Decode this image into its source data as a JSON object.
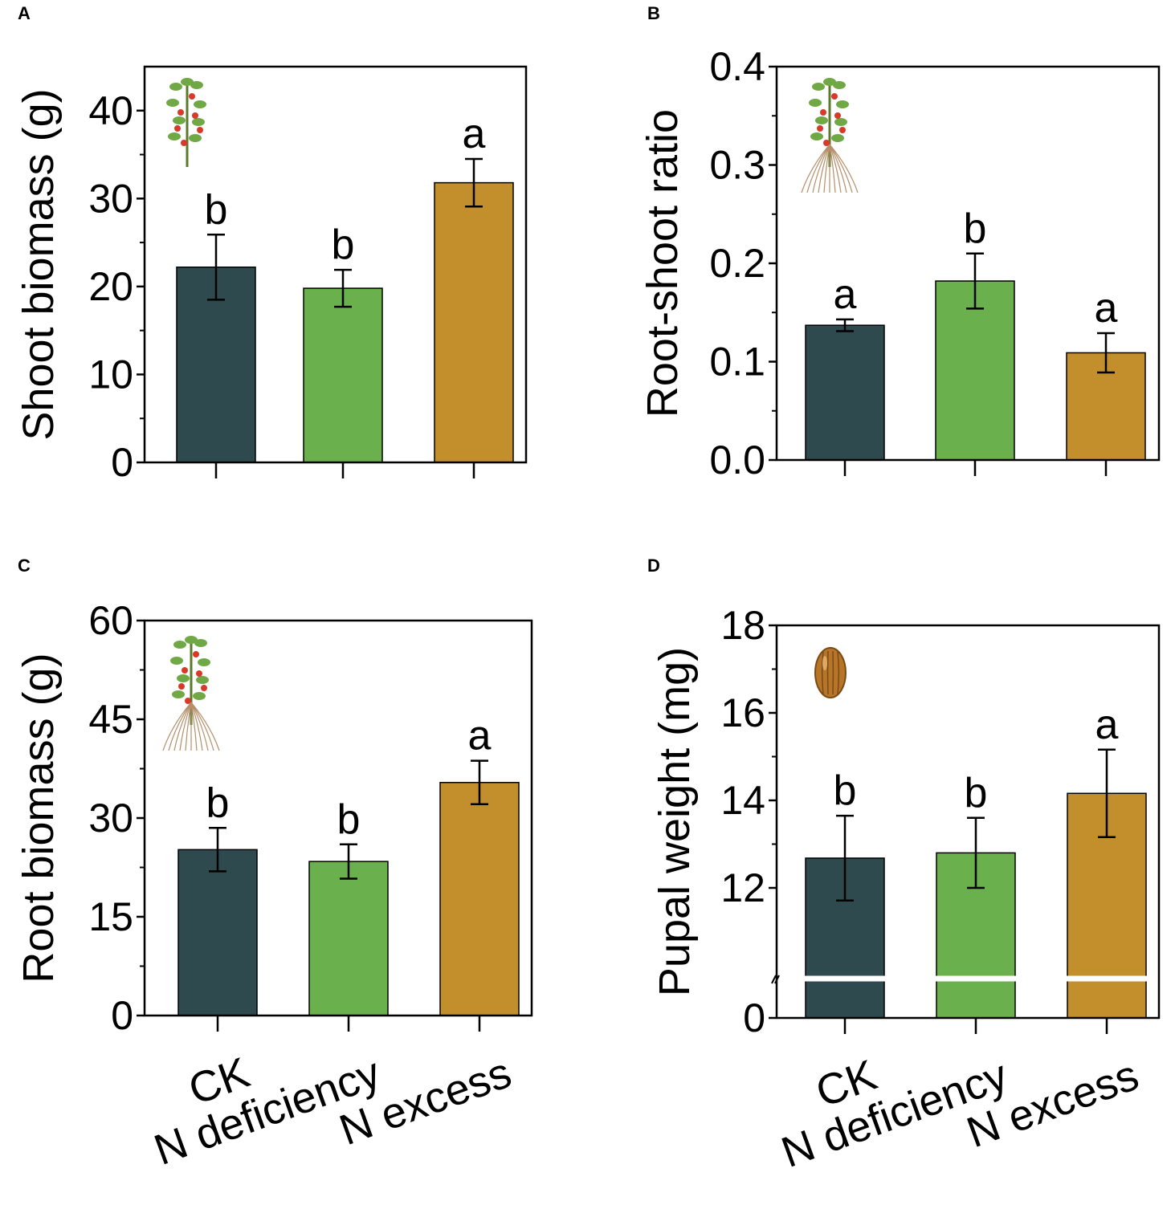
{
  "figure": {
    "categories": [
      "CK",
      "N deficiency",
      "N excess"
    ],
    "colors": {
      "CK": "#2e4a4e",
      "N deficiency": "#6ab04c",
      "N excess": "#c28f2c",
      "axis": "#000000",
      "break_line": "#ffffff"
    },
    "icons": {
      "A": "tomato-shoot-icon",
      "B": "tomato-plant-with-roots-icon",
      "C": "tomato-plant-with-roots-icon",
      "D": "pupa-icon"
    }
  },
  "chart_data": [
    {
      "panel": "A",
      "type": "bar",
      "title": "",
      "ylabel": "Shoot biomass (g)",
      "xlabel": "",
      "ylim": [
        0,
        45
      ],
      "yticks": [
        "0",
        "10",
        "20",
        "30",
        "40"
      ],
      "categories": [
        "CK",
        "N deficiency",
        "N excess"
      ],
      "show_category_labels": false,
      "values": [
        22.2,
        19.8,
        31.8
      ],
      "errors": [
        3.7,
        2.1,
        2.7
      ],
      "letters": [
        "b",
        "b",
        "a"
      ]
    },
    {
      "panel": "B",
      "type": "bar",
      "title": "",
      "ylabel": "Root-shoot ratio",
      "xlabel": "",
      "ylim": [
        0,
        0.4
      ],
      "yticks": [
        "0.0",
        "0.1",
        "0.2",
        "0.3",
        "0.4"
      ],
      "categories": [
        "CK",
        "N deficiency",
        "N excess"
      ],
      "show_category_labels": false,
      "values": [
        0.137,
        0.182,
        0.109
      ],
      "errors": [
        0.006,
        0.028,
        0.02
      ],
      "letters": [
        "a",
        "b",
        "a"
      ]
    },
    {
      "panel": "C",
      "type": "bar",
      "title": "",
      "ylabel": "Root biomass (g)",
      "xlabel": "",
      "ylim": [
        0,
        60
      ],
      "yticks": [
        "0",
        "15",
        "30",
        "45",
        "60"
      ],
      "categories": [
        "CK",
        "N deficiency",
        "N excess"
      ],
      "show_category_labels": true,
      "values": [
        25.2,
        23.4,
        35.4
      ],
      "errors": [
        3.3,
        2.6,
        3.3
      ],
      "letters": [
        "b",
        "b",
        "a"
      ]
    },
    {
      "panel": "D",
      "type": "bar",
      "title": "",
      "ylabel": "Pupal weight (mg)",
      "xlabel": "",
      "ylim": [
        0,
        18
      ],
      "axis_break": true,
      "yticks": [
        "0",
        "12",
        "14",
        "16",
        "18"
      ],
      "categories": [
        "CK",
        "N deficiency",
        "N excess"
      ],
      "show_category_labels": true,
      "values": [
        12.68,
        12.8,
        14.16
      ],
      "errors": [
        0.97,
        0.8,
        1.0
      ],
      "letters": [
        "b",
        "b",
        "a"
      ]
    }
  ]
}
